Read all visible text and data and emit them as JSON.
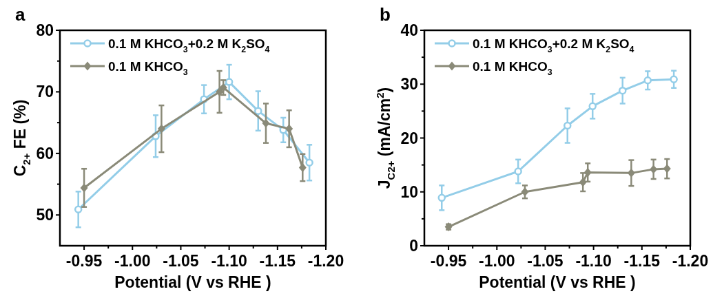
{
  "chart_data": [
    {
      "type": "line",
      "title": "a",
      "xlabel": "Potential (V vs RHE )",
      "ylabel": "C$_{2+}$ FE (%)",
      "xlim": [
        -0.925,
        -1.2
      ],
      "ylim": [
        45,
        80
      ],
      "xticks": [
        {
          "value": -0.95,
          "label": "-0.95"
        },
        {
          "value": -0.975,
          "label": null
        },
        {
          "value": -1.0,
          "label": "-1.00"
        },
        {
          "value": -1.025,
          "label": null
        },
        {
          "value": -1.05,
          "label": "-1.05"
        },
        {
          "value": -1.075,
          "label": null
        },
        {
          "value": -1.1,
          "label": "-1.10"
        },
        {
          "value": -1.125,
          "label": null
        },
        {
          "value": -1.15,
          "label": "-1.15"
        },
        {
          "value": -1.175,
          "label": null
        },
        {
          "value": -1.2,
          "label": "-1.20"
        }
      ],
      "yticks": [
        50,
        {
          "value": 55,
          "label": null
        },
        60,
        {
          "value": 65,
          "label": null
        },
        70,
        {
          "value": 75,
          "label": null
        },
        80
      ],
      "legend": "top left",
      "grid": false,
      "series": [
        {
          "name": "0.1 M KHCO$_{3}$+0.2 M K$_{2}$SO$_{4}$",
          "color": "#93cde8",
          "marker": "circle",
          "x": [
            -0.944,
            -1.024,
            -1.074,
            -1.1,
            -1.13,
            -1.156,
            -1.183
          ],
          "values": [
            50.9,
            62.8,
            68.8,
            71.6,
            66.9,
            63.8,
            58.5
          ],
          "errors": [
            2.9,
            3.4,
            2.3,
            2.8,
            3.2,
            2,
            2.9
          ]
        },
        {
          "name": "0.1 M KHCO$_{3}$",
          "color": "#8a8a78",
          "marker": "diamond",
          "x": [
            -0.95,
            -1.03,
            -1.09,
            -1.094,
            -1.138,
            -1.162,
            -1.176
          ],
          "values": [
            54.4,
            64.0,
            70.0,
            70.7,
            64.9,
            64.0,
            57.7
          ],
          "errors": [
            3.1,
            3.8,
            3.4,
            1.2,
            3.2,
            3,
            2.2
          ]
        }
      ]
    },
    {
      "type": "line",
      "title": "b",
      "xlabel": "Potential (V vs RHE )",
      "ylabel": "J$_{C2+}$ (mA/cm$^{2}$)",
      "xlim": [
        -0.925,
        -1.2
      ],
      "ylim": [
        0,
        40
      ],
      "xticks": [
        {
          "value": -0.95,
          "label": "-0.95"
        },
        {
          "value": -0.975,
          "label": null
        },
        {
          "value": -1.0,
          "label": "-1.00"
        },
        {
          "value": -1.025,
          "label": null
        },
        {
          "value": -1.05,
          "label": "-1.05"
        },
        {
          "value": -1.075,
          "label": null
        },
        {
          "value": -1.1,
          "label": "-1.10"
        },
        {
          "value": -1.125,
          "label": null
        },
        {
          "value": -1.15,
          "label": "-1.15"
        },
        {
          "value": -1.175,
          "label": null
        },
        {
          "value": -1.2,
          "label": "-1.20"
        }
      ],
      "yticks": [
        0,
        {
          "value": 5,
          "label": null
        },
        10,
        {
          "value": 15,
          "label": null
        },
        20,
        {
          "value": 25,
          "label": null
        },
        30,
        {
          "value": 35,
          "label": null
        },
        40
      ],
      "legend": "top left",
      "grid": false,
      "series": [
        {
          "name": "0.1 M KHCO$_{3}$+0.2 M K$_{2}$SO$_{4}$",
          "color": "#93cde8",
          "marker": "circle",
          "x": [
            -0.943,
            -1.022,
            -1.073,
            -1.099,
            -1.13,
            -1.156,
            -1.183
          ],
          "values": [
            8.9,
            13.8,
            22.3,
            25.9,
            28.8,
            30.7,
            30.9
          ],
          "errors": [
            2.3,
            2.2,
            3.2,
            2.3,
            2.4,
            1.7,
            1.6
          ]
        },
        {
          "name": "0.1 M KHCO$_{3}$",
          "color": "#8a8a78",
          "marker": "diamond",
          "x": [
            -0.95,
            -1.029,
            -1.089,
            -1.094,
            -1.139,
            -1.162,
            -1.176
          ],
          "values": [
            3.5,
            10.0,
            11.8,
            13.6,
            13.5,
            14.2,
            14.3
          ],
          "errors": [
            0.5,
            1.2,
            1.7,
            1.7,
            2.4,
            1.8,
            1.8
          ]
        }
      ]
    }
  ]
}
